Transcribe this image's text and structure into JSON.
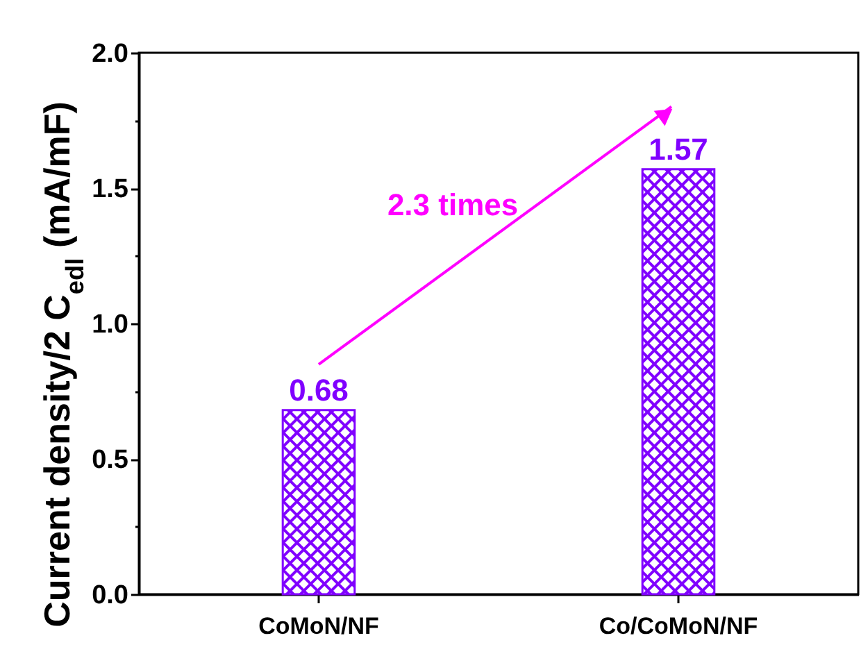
{
  "chart_data": {
    "type": "bar",
    "categories": [
      "CoMoN/NF",
      "Co/CoMoN/NF"
    ],
    "values": [
      0.68,
      1.57
    ],
    "color": "#8000ff",
    "ylabel": "Current density/2 C$_{edl}$ (mA/mF)",
    "ylim": [
      0,
      2.0
    ],
    "yticks": [
      {
        "value": 0,
        "label": "0.0"
      },
      {
        "value": 0.25,
        "label": null
      },
      0.5,
      {
        "value": 0.75,
        "label": null
      },
      {
        "value": 1,
        "label": "1.0"
      },
      {
        "value": 1.25,
        "label": null
      },
      1.5,
      {
        "value": 1.75,
        "label": null
      },
      {
        "value": 2,
        "label": "2.0"
      }
    ],
    "data_labels": true,
    "annotations": [
      "2.3 times"
    ],
    "grid": false
  }
}
